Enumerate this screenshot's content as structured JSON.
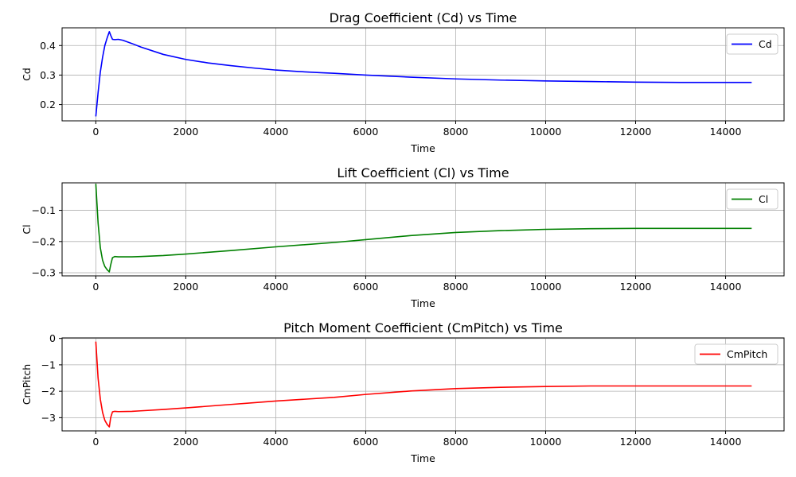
{
  "chart_data": [
    {
      "type": "line",
      "title": "Drag Coefficient (Cd) vs Time",
      "xlabel": "Time",
      "ylabel": "Cd",
      "xlim": [
        -750,
        15300
      ],
      "ylim": [
        0.145,
        0.46
      ],
      "xticks": [
        0,
        2000,
        4000,
        6000,
        8000,
        10000,
        12000,
        14000
      ],
      "yticks": [
        0.2,
        0.3,
        0.4
      ],
      "ytick_labels": [
        "0.2",
        "0.3",
        "0.4"
      ],
      "grid": true,
      "legend_position": "top-right",
      "series": [
        {
          "name": "Cd",
          "color": "#0000ff",
          "x": [
            0,
            50,
            100,
            150,
            200,
            250,
            300,
            330,
            370,
            420,
            500,
            600,
            800,
            1000,
            1500,
            2000,
            2500,
            3000,
            3500,
            4000,
            4500,
            5000,
            5300,
            6000,
            7000,
            8000,
            9000,
            10000,
            11000,
            12000,
            13000,
            14000,
            14580
          ],
          "y": [
            0.16,
            0.24,
            0.31,
            0.36,
            0.4,
            0.425,
            0.447,
            0.435,
            0.421,
            0.42,
            0.421,
            0.418,
            0.407,
            0.395,
            0.37,
            0.353,
            0.341,
            0.332,
            0.324,
            0.317,
            0.312,
            0.308,
            0.306,
            0.3,
            0.293,
            0.287,
            0.283,
            0.28,
            0.278,
            0.276,
            0.275,
            0.275,
            0.275
          ]
        }
      ]
    },
    {
      "type": "line",
      "title": "Lift Coefficient (Cl) vs Time",
      "xlabel": "Time",
      "ylabel": "Cl",
      "xlim": [
        -750,
        15300
      ],
      "ylim": [
        -0.31,
        -0.012
      ],
      "xticks": [
        0,
        2000,
        4000,
        6000,
        8000,
        10000,
        12000,
        14000
      ],
      "yticks": [
        -0.3,
        -0.2,
        -0.1
      ],
      "ytick_labels": [
        "−0.3",
        "−0.2",
        "−0.1"
      ],
      "grid": true,
      "legend_position": "top-right",
      "series": [
        {
          "name": "Cl",
          "color": "#008000",
          "x": [
            0,
            50,
            100,
            150,
            200,
            250,
            300,
            330,
            370,
            420,
            500,
            800,
            1000,
            1500,
            2000,
            3000,
            4000,
            5300,
            6000,
            7000,
            8000,
            9000,
            10000,
            11000,
            12000,
            13000,
            14000,
            14580
          ],
          "y": [
            -0.015,
            -0.14,
            -0.22,
            -0.26,
            -0.28,
            -0.29,
            -0.297,
            -0.275,
            -0.252,
            -0.248,
            -0.249,
            -0.249,
            -0.248,
            -0.245,
            -0.24,
            -0.229,
            -0.217,
            -0.203,
            -0.194,
            -0.181,
            -0.171,
            -0.165,
            -0.161,
            -0.159,
            -0.158,
            -0.158,
            -0.158,
            -0.158
          ]
        }
      ]
    },
    {
      "type": "line",
      "title": "Pitch Moment Coefficient (CmPitch) vs Time",
      "xlabel": "Time",
      "ylabel": "CmPitch",
      "xlim": [
        -750,
        15300
      ],
      "ylim": [
        -3.5,
        0.02
      ],
      "xticks": [
        0,
        2000,
        4000,
        6000,
        8000,
        10000,
        12000,
        14000
      ],
      "yticks": [
        -3,
        -2,
        -1,
        0
      ],
      "ytick_labels": [
        "−3",
        "−2",
        "−1",
        "0"
      ],
      "grid": true,
      "legend_position": "top-right",
      "series": [
        {
          "name": "CmPitch",
          "color": "#ff0000",
          "x": [
            0,
            50,
            100,
            150,
            200,
            250,
            300,
            330,
            370,
            420,
            500,
            800,
            1000,
            1500,
            2000,
            3000,
            4000,
            5300,
            6000,
            7000,
            8000,
            9000,
            10000,
            11000,
            12000,
            13000,
            14000,
            14580
          ],
          "y": [
            -0.12,
            -1.5,
            -2.3,
            -2.8,
            -3.1,
            -3.25,
            -3.35,
            -3.0,
            -2.78,
            -2.76,
            -2.77,
            -2.76,
            -2.74,
            -2.69,
            -2.63,
            -2.5,
            -2.37,
            -2.23,
            -2.12,
            -1.99,
            -1.9,
            -1.85,
            -1.82,
            -1.8,
            -1.8,
            -1.8,
            -1.8,
            -1.8
          ]
        }
      ]
    }
  ]
}
